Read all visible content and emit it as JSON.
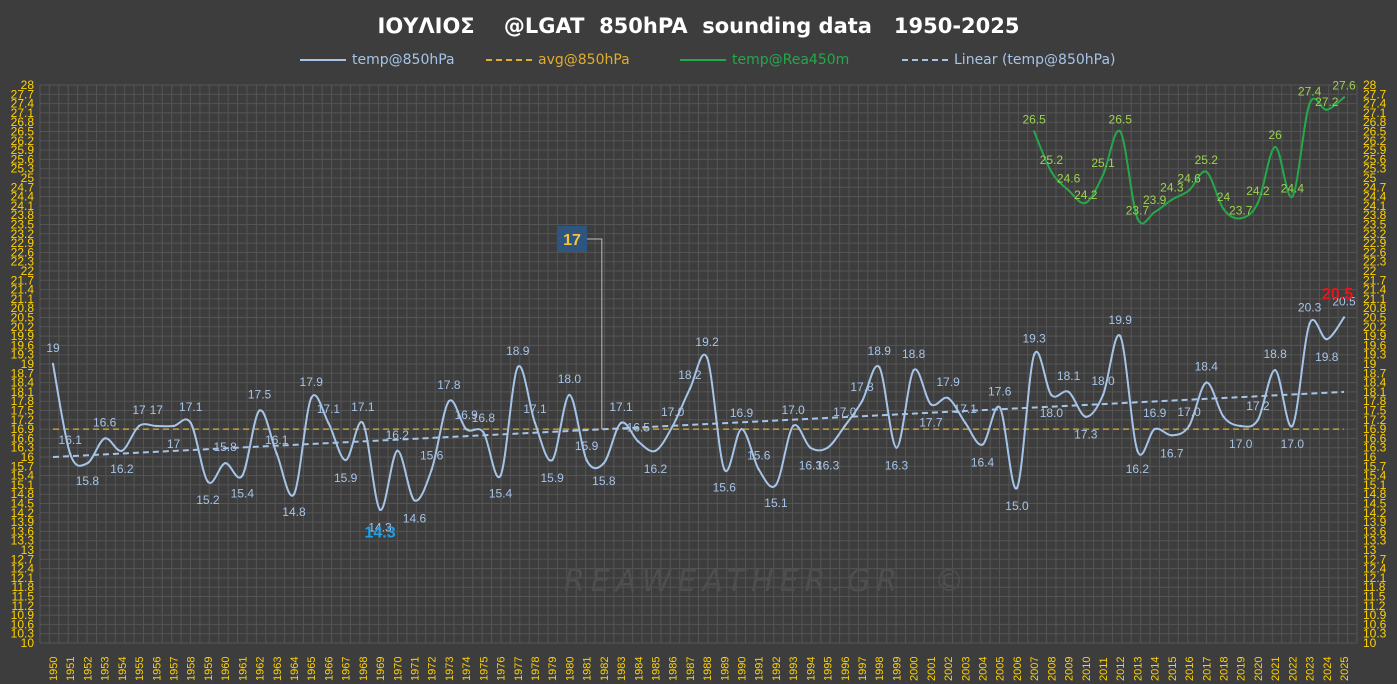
{
  "title": "ΙΟΥΛΙΟΣ    @LGAT  850hPA  sounding data   1950-2025",
  "watermark": "REAWEATHER.GR  ©",
  "colors": {
    "background": "#3d3d3d",
    "grid": "#555555",
    "temp": "#a6c4e8",
    "avg": "#e0ae2c",
    "rea": "#24a84a",
    "rea_labels": "#9bd34e",
    "trend": "#a6c4e8",
    "axis_text": "#ffd200",
    "min_highlight": "#1fa0e8",
    "max_highlight": "#e8141b",
    "callout_bg": "#2d5580",
    "callout_text": "#f7c53c"
  },
  "legend": [
    {
      "label": "temp@850hPa",
      "key": "temp"
    },
    {
      "label": "avg@850hPa",
      "key": "avg"
    },
    {
      "label": "temp@Rea450m",
      "key": "rea"
    },
    {
      "label": "Linear (temp@850hPa)",
      "key": "trend"
    }
  ],
  "chart_data": {
    "type": "line",
    "x": [
      1950,
      1951,
      1952,
      1953,
      1954,
      1955,
      1956,
      1957,
      1958,
      1959,
      1960,
      1961,
      1962,
      1963,
      1964,
      1965,
      1966,
      1967,
      1968,
      1969,
      1970,
      1971,
      1972,
      1973,
      1974,
      1975,
      1976,
      1977,
      1978,
      1979,
      1980,
      1981,
      1982,
      1983,
      1984,
      1985,
      1986,
      1987,
      1988,
      1989,
      1990,
      1991,
      1992,
      1993,
      1994,
      1995,
      1996,
      1997,
      1998,
      1999,
      2000,
      2001,
      2002,
      2003,
      2004,
      2005,
      2006,
      2007,
      2008,
      2009,
      2010,
      2011,
      2012,
      2013,
      2014,
      2015,
      2016,
      2017,
      2018,
      2019,
      2020,
      2021,
      2022,
      2023,
      2024,
      2025
    ],
    "x_tick_labels": [
      "1950",
      "1951",
      "1952",
      "1953",
      "1954",
      "1955",
      "1956",
      "1957",
      "1958",
      "1959",
      "1960",
      "1961",
      "1962",
      "1963",
      "1964",
      "1965",
      "1966",
      "1967",
      "1968",
      "1969",
      "1970",
      "1971",
      "1972",
      "1973",
      "1974",
      "1975",
      "1976",
      "1977",
      "1978",
      "1979",
      "1980",
      "1981",
      "1982",
      "1983",
      "1984",
      "1985",
      "1986",
      "1987",
      "1988",
      "1989",
      "1990",
      "1991",
      "1992",
      "1993",
      "1994",
      "1995",
      "1996",
      "1997",
      "1998",
      "1999",
      "2000",
      "2001",
      "2002",
      "2003",
      "2004",
      "2005",
      "2006",
      "2007",
      "2008",
      "2009",
      "2010",
      "2011",
      "2012",
      "2013",
      "2014",
      "2015",
      "2016",
      "2017",
      "2018",
      "2019",
      "2020",
      "2021",
      "2022",
      "2023",
      "2024",
      "2025"
    ],
    "y_ticks": [
      "10",
      "10.3",
      "10.6",
      "10.9",
      "11.2",
      "11.5",
      "11.8",
      "12.1",
      "12.4",
      "12.7",
      "13",
      "13.3",
      "13.6",
      "13.9",
      "14.2",
      "14.5",
      "14.8",
      "15.1",
      "15.4",
      "15.7",
      "16",
      "16.3",
      "16.6",
      "16.9",
      "17.2",
      "17.5",
      "17.8",
      "18.1",
      "18.4",
      "18.7",
      "19",
      "19.3",
      "19.6",
      "19.9",
      "20.2",
      "20.5",
      "20.8",
      "21.1",
      "21.4",
      "21.7",
      "22",
      "22.3",
      "22.6",
      "22.9",
      "23.2",
      "23.5",
      "23.8",
      "24.1",
      "24.4",
      "24.7",
      "25",
      "25.3",
      "25.6",
      "25.9",
      "26.2",
      "26.5",
      "26.8",
      "27.1",
      "27.4",
      "27.7",
      "28"
    ],
    "ylim": [
      10,
      28
    ],
    "grid": true,
    "legend_position": "top",
    "series": [
      {
        "name": "temp@850hPa",
        "key": "temp",
        "values": [
          19.0,
          16.1,
          15.8,
          16.6,
          16.2,
          17.0,
          17.0,
          17.0,
          17.1,
          15.2,
          15.8,
          15.4,
          17.5,
          16.1,
          14.8,
          17.9,
          17.1,
          15.9,
          17.1,
          14.3,
          16.2,
          14.6,
          15.6,
          17.8,
          16.9,
          16.8,
          15.4,
          18.9,
          17.1,
          15.9,
          18.0,
          15.9,
          15.8,
          17.1,
          16.5,
          16.2,
          17.0,
          18.2,
          19.2,
          15.6,
          16.9,
          15.6,
          15.1,
          17.0,
          16.3,
          16.3,
          17.0,
          17.8,
          18.9,
          16.3,
          18.8,
          17.7,
          17.9,
          17.1,
          16.4,
          17.6,
          15.0,
          19.3,
          18.0,
          18.1,
          17.3,
          18.0,
          19.9,
          16.2,
          16.9,
          16.7,
          17.0,
          18.4,
          17.3,
          17.0,
          17.2,
          18.8,
          17.0,
          20.3,
          19.8,
          20.5
        ],
        "labels": [
          "19",
          "16.1",
          "15.8",
          "16.6",
          "16.2",
          "17",
          "17",
          "17",
          "17.1",
          "15.2",
          "15.8",
          "15.4",
          "17.5",
          "16.1",
          "14.8",
          "17.9",
          "17.1",
          "15.9",
          "17.1",
          "14.3",
          "16.2",
          "14.6",
          "15.6",
          "17.8",
          "16.9",
          "16.8",
          "15.4",
          "18.9",
          "17.1",
          "15.9",
          "18.0",
          "15.9",
          "15.8",
          "17.1",
          "16.5",
          "16.2",
          "17.0",
          "18.2",
          "19.2",
          "15.6",
          "16.9",
          "15.6",
          "15.1",
          "17.0",
          "16.3",
          "16.3",
          "17.0",
          "17.8",
          "18.9",
          "16.3",
          "18.8",
          "17.7",
          "17.9",
          "17.1",
          "16.4",
          "17.6",
          "15.0",
          "19.3",
          "18.0",
          "18.1",
          "17.3",
          "18.0",
          "19.9",
          "16.2",
          "16.9",
          "16.7",
          "17.0",
          "18.4",
          "",
          "17.0",
          "17.2",
          "18.8",
          "17.0",
          "20.3",
          "19.8",
          "20.5"
        ]
      },
      {
        "name": "avg@850hPa",
        "key": "avg",
        "constant": 16.9
      },
      {
        "name": "temp@Rea450m",
        "key": "rea",
        "x": [
          2007,
          2008,
          2009,
          2010,
          2011,
          2012,
          2013,
          2014,
          2015,
          2016,
          2017,
          2018,
          2019,
          2020,
          2021,
          2022,
          2023,
          2024,
          2025
        ],
        "values": [
          26.5,
          25.2,
          24.6,
          24.2,
          25.1,
          26.5,
          23.7,
          23.9,
          24.3,
          24.6,
          25.2,
          24.0,
          23.7,
          24.2,
          26.0,
          24.4,
          27.4,
          27.2,
          27.6
        ],
        "labels": [
          "26.5",
          "25.2",
          "24.6",
          "24.2",
          "25.1",
          "26.5",
          "23.7",
          "23.9",
          "24.3",
          "24.6",
          "25.2",
          "24",
          "23.7",
          "24.2",
          "26",
          "24.4",
          "27.4",
          "27.2",
          "27.6"
        ]
      },
      {
        "name": "Linear (temp@850hPa)",
        "key": "trend",
        "x": [
          1950,
          2025
        ],
        "values": [
          16.0,
          18.1
        ]
      }
    ],
    "annotations": [
      {
        "text": "17",
        "type": "callout",
        "x": 1982,
        "y": 16.9
      },
      {
        "text": "14.3",
        "type": "min",
        "x": 1969,
        "y": 14.3
      },
      {
        "text": "20.5",
        "type": "max",
        "x": 2025,
        "y": 20.5
      }
    ]
  }
}
